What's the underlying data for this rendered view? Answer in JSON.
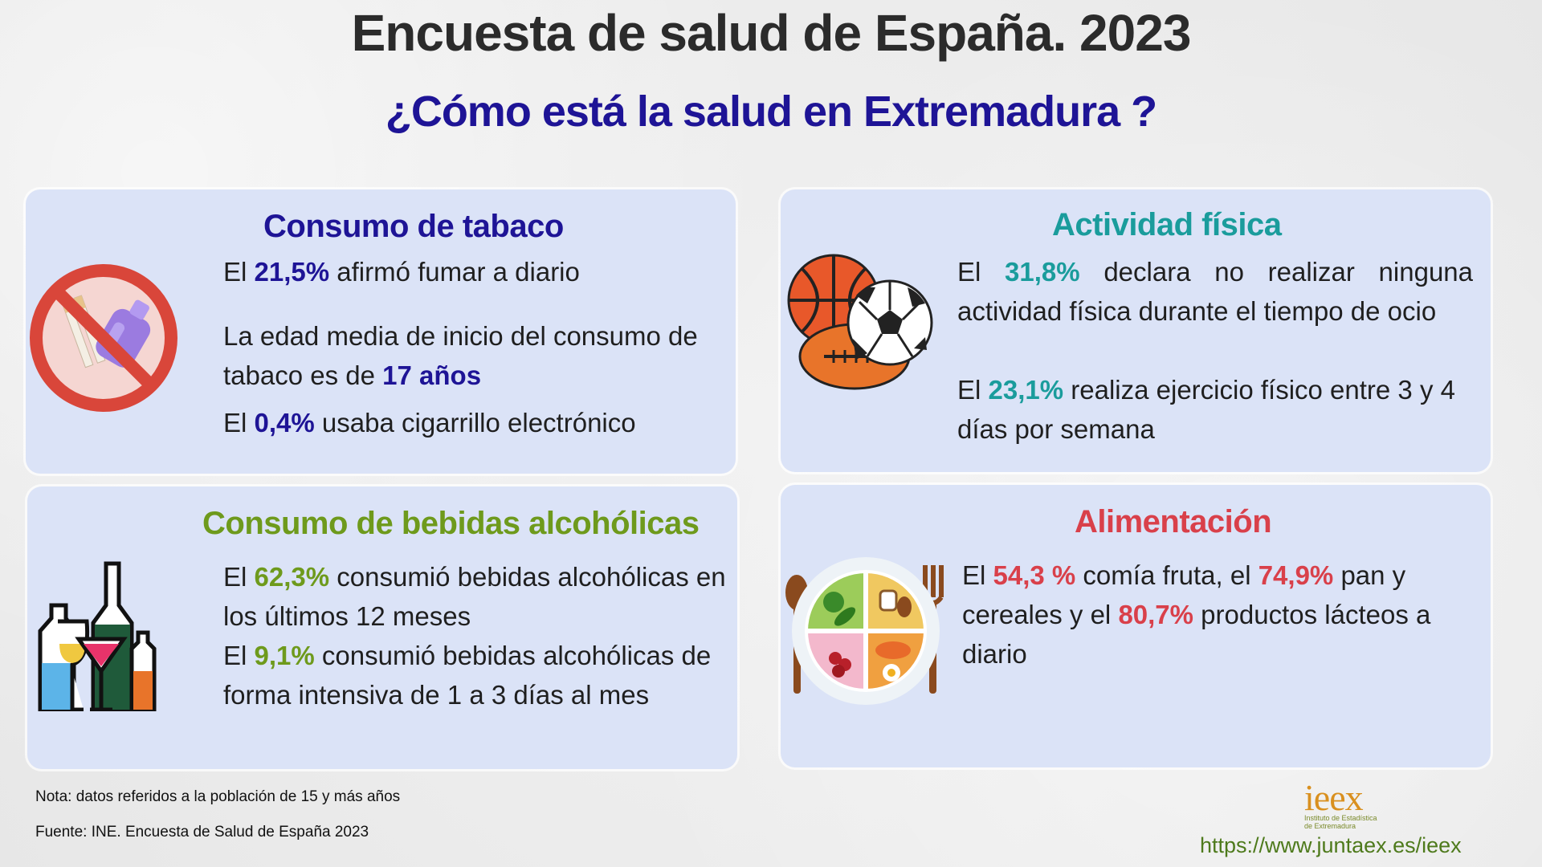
{
  "header": {
    "title": "Encuesta de salud de España. 2023",
    "subtitle": "¿Cómo está la salud en Extremadura ?"
  },
  "colors": {
    "blue": "#1e1496",
    "teal": "#1a9c9c",
    "green": "#6e9a1c",
    "red": "#d9404a",
    "card_bg": "#dbe3f7"
  },
  "tabaco": {
    "title": "Consumo de tabaco",
    "icon": "no-smoking-icon",
    "l1_pre": "El ",
    "l1_hl": "21,5%",
    "l1_post": "  afirmó fumar a diario",
    "l2_pre": "La edad media de inicio del consumo de tabaco es de ",
    "l2_hl": "17 años",
    "l3_pre": "El ",
    "l3_hl": "0,4%",
    "l3_post": " usaba cigarrillo electrónico"
  },
  "actividad": {
    "title": "Actividad física",
    "icon": "sports-balls-icon",
    "l1_pre": "El ",
    "l1_hl": "31,8%",
    "l1_post": "  declara no realizar ninguna actividad física durante el tiempo de ocio",
    "l2_pre": "El ",
    "l2_hl": "23,1%",
    "l2_post": " realiza ejercicio físico entre 3 y 4 días por semana"
  },
  "alcohol": {
    "title": "Consumo de bebidas alcohólicas",
    "icon": "bottles-glasses-icon",
    "l1_pre": "El ",
    "l1_hl": "62,3%",
    "l1_post": " consumió  bebidas alcohólicas en los últimos 12 meses",
    "l2_pre": "El ",
    "l2_hl": "9,1%",
    "l2_post": "  consumió bebidas alcohólicas de forma intensiva  de 1 a 3 días al mes"
  },
  "alimentacion": {
    "title": "Alimentación",
    "icon": "food-plate-icon",
    "l1_pre": "El ",
    "l1_hl": "54,3 %",
    "l1_mid": " comía fruta, el ",
    "l1_hl2": "74,9%",
    "l1_mid2": "  pan y cereales y el ",
    "l1_hl3": "80,7%",
    "l1_post": " productos lácteos a diario"
  },
  "footer": {
    "note": "Nota: datos referidos a la población de 15 y más años",
    "source": "Fuente: INE. Encuesta de Salud de España 2023",
    "logo_text": "ieex",
    "logo_sub1": "Instituto de Estadística",
    "logo_sub2": "de Extremadura",
    "url": "https://www.juntaex.es/ieex"
  }
}
